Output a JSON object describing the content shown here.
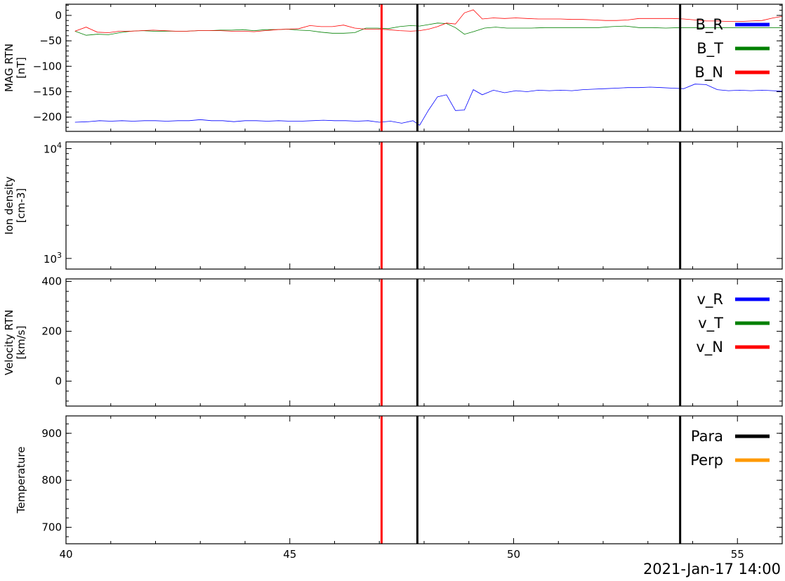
{
  "chart_data": [
    {
      "type": "line",
      "panel": "mag",
      "ylabel": [
        "MAG RTN",
        "[nT]"
      ],
      "ylim": [
        -228,
        22
      ],
      "yscale": "linear",
      "yticks": [
        0,
        -50,
        -100,
        -150,
        -200
      ],
      "ytick_labels": [
        "0",
        "−50",
        "−100",
        "−150",
        "−200"
      ],
      "legend_position": "top-right",
      "series": [
        {
          "name": "B_R",
          "color": "#0000ff",
          "x": [
            40.2,
            40.5,
            40.75,
            41.0,
            41.25,
            41.5,
            41.75,
            42.0,
            42.25,
            42.5,
            42.75,
            43.0,
            43.25,
            43.5,
            43.75,
            44.0,
            44.25,
            44.5,
            44.75,
            45.0,
            45.25,
            45.5,
            45.75,
            46.0,
            46.25,
            46.5,
            46.75,
            47.0,
            47.25,
            47.5,
            47.75,
            47.9,
            48.1,
            48.3,
            48.5,
            48.7,
            48.9,
            49.1,
            49.3,
            49.55,
            49.8,
            50.05,
            50.3,
            50.55,
            50.8,
            51.05,
            51.3,
            51.55,
            51.8,
            52.05,
            52.3,
            52.55,
            52.8,
            53.05,
            53.3,
            53.55,
            53.8,
            54.05,
            54.3,
            54.55,
            54.8,
            55.05,
            55.3,
            55.55,
            55.8,
            56.0
          ],
          "y": [
            -210,
            -209,
            -207,
            -208,
            -207,
            -208,
            -207,
            -207,
            -208,
            -207,
            -207,
            -205,
            -207,
            -207,
            -209,
            -207,
            -207,
            -208,
            -207,
            -208,
            -208,
            -207,
            -206,
            -207,
            -207,
            -208,
            -207,
            -210,
            -208,
            -212,
            -207,
            -216,
            -186,
            -160,
            -156,
            -187,
            -186,
            -146,
            -156,
            -147,
            -152,
            -148,
            -150,
            -147,
            -148,
            -147,
            -148,
            -146,
            -145,
            -144,
            -143,
            -142,
            -142,
            -141,
            -142,
            -143,
            -144,
            -135,
            -136,
            -146,
            -148,
            -147,
            -148,
            -147,
            -148,
            -149
          ]
        },
        {
          "name": "B_T",
          "color": "#008000",
          "x": [
            40.2,
            40.45,
            40.7,
            40.95,
            41.2,
            41.45,
            41.7,
            41.95,
            42.2,
            42.45,
            42.7,
            42.95,
            43.2,
            43.45,
            43.7,
            43.95,
            44.2,
            44.45,
            44.7,
            44.95,
            45.2,
            45.45,
            45.7,
            45.95,
            46.2,
            46.45,
            46.7,
            46.95,
            47.2,
            47.45,
            47.7,
            47.9,
            48.1,
            48.3,
            48.5,
            48.7,
            48.9,
            49.1,
            49.35,
            49.6,
            49.85,
            50.1,
            50.4,
            50.7,
            51.0,
            51.3,
            51.6,
            51.9,
            52.2,
            52.5,
            52.8,
            53.1,
            53.4,
            53.7,
            54.0,
            54.3,
            54.6,
            54.9,
            55.2,
            55.5,
            55.8,
            56.0
          ],
          "y": [
            -31,
            -39,
            -37,
            -38,
            -34,
            -31,
            -30,
            -31,
            -31,
            -31,
            -31,
            -30,
            -30,
            -29,
            -29,
            -28,
            -30,
            -28,
            -28,
            -27,
            -29,
            -30,
            -33,
            -35,
            -35,
            -34,
            -25,
            -25,
            -26,
            -22,
            -20,
            -21,
            -18,
            -15,
            -16,
            -24,
            -37,
            -32,
            -25,
            -23,
            -25,
            -25,
            -25,
            -24,
            -24,
            -24,
            -24,
            -24,
            -22,
            -21,
            -24,
            -24,
            -25,
            -24,
            -24,
            -24,
            -24,
            -24,
            -24,
            -24,
            -24,
            -24
          ]
        },
        {
          "name": "B_N",
          "color": "#ff0000",
          "x": [
            40.2,
            40.45,
            40.7,
            40.95,
            41.2,
            41.45,
            41.7,
            41.95,
            42.2,
            42.45,
            42.7,
            42.95,
            43.2,
            43.45,
            43.7,
            43.95,
            44.2,
            44.45,
            44.7,
            44.95,
            45.2,
            45.45,
            45.7,
            45.95,
            46.2,
            46.45,
            46.7,
            46.95,
            47.2,
            47.45,
            47.7,
            47.9,
            48.1,
            48.3,
            48.5,
            48.7,
            48.9,
            49.1,
            49.3,
            49.55,
            49.8,
            50.05,
            50.3,
            50.55,
            50.8,
            51.05,
            51.3,
            51.55,
            51.8,
            52.05,
            52.3,
            52.55,
            52.8,
            53.05,
            53.3,
            53.55,
            53.8,
            54.05,
            54.3,
            54.55,
            54.8,
            55.05,
            55.3,
            55.55,
            55.8,
            56.0
          ],
          "y": [
            -31,
            -23,
            -33,
            -34,
            -31,
            -31,
            -30,
            -29,
            -30,
            -31,
            -31,
            -30,
            -30,
            -30,
            -31,
            -31,
            -32,
            -30,
            -28,
            -27,
            -26,
            -20,
            -22,
            -22,
            -19,
            -25,
            -27,
            -27,
            -28,
            -30,
            -31,
            -30,
            -27,
            -22,
            -15,
            -17,
            5,
            11,
            -7,
            -5,
            -6,
            -5,
            -6,
            -7,
            -7,
            -7,
            -8,
            -8,
            -9,
            -10,
            -10,
            -9,
            -6,
            -6,
            -6,
            -6,
            -7,
            -9,
            -11,
            -11,
            -12,
            -12,
            -11,
            -10,
            -5,
            -2
          ]
        }
      ]
    },
    {
      "type": "line",
      "panel": "density",
      "ylabel": [
        "Ion density",
        "[cm-3]"
      ],
      "ylim": [
        800,
        11500
      ],
      "yscale": "log",
      "yticks": [
        10000,
        1000
      ],
      "ytick_labels": [
        [
          "10",
          "4"
        ],
        [
          "10",
          "3"
        ]
      ],
      "series": []
    },
    {
      "type": "line",
      "panel": "velocity",
      "ylabel": [
        "Velocity RTN",
        "[km/s]"
      ],
      "ylim": [
        -100,
        410
      ],
      "yscale": "linear",
      "yticks": [
        400,
        200,
        0
      ],
      "ytick_labels": [
        "400",
        "200",
        "0"
      ],
      "legend_position": "top-right",
      "series": [
        {
          "name": "v_R",
          "color": "#0000ff",
          "x": [],
          "y": []
        },
        {
          "name": "v_T",
          "color": "#008000",
          "x": [],
          "y": []
        },
        {
          "name": "v_N",
          "color": "#ff0000",
          "x": [],
          "y": []
        }
      ]
    },
    {
      "type": "line",
      "panel": "temperature",
      "ylabel": [
        "Temperature"
      ],
      "ylim": [
        665,
        937
      ],
      "yscale": "linear",
      "yticks": [
        900,
        800,
        700
      ],
      "ytick_labels": [
        "900",
        "800",
        "700"
      ],
      "legend_position": "top-right",
      "series": [
        {
          "name": "Para",
          "color": "#000000",
          "x": [],
          "y": []
        },
        {
          "name": "Perp",
          "color": "#ff9900",
          "x": [],
          "y": []
        }
      ]
    }
  ],
  "x_axis": {
    "xlim": [
      40,
      56
    ],
    "xticks": [
      40,
      45,
      50,
      55
    ],
    "xtick_labels": [
      "40",
      "45",
      "50",
      "55"
    ],
    "time_label": "2021-Jan-17 14:00"
  },
  "vlines": [
    {
      "x": 47.05,
      "color": "#ff0000"
    },
    {
      "x": 47.85,
      "color": "#000000"
    },
    {
      "x": 53.72,
      "color": "#000000"
    }
  ]
}
